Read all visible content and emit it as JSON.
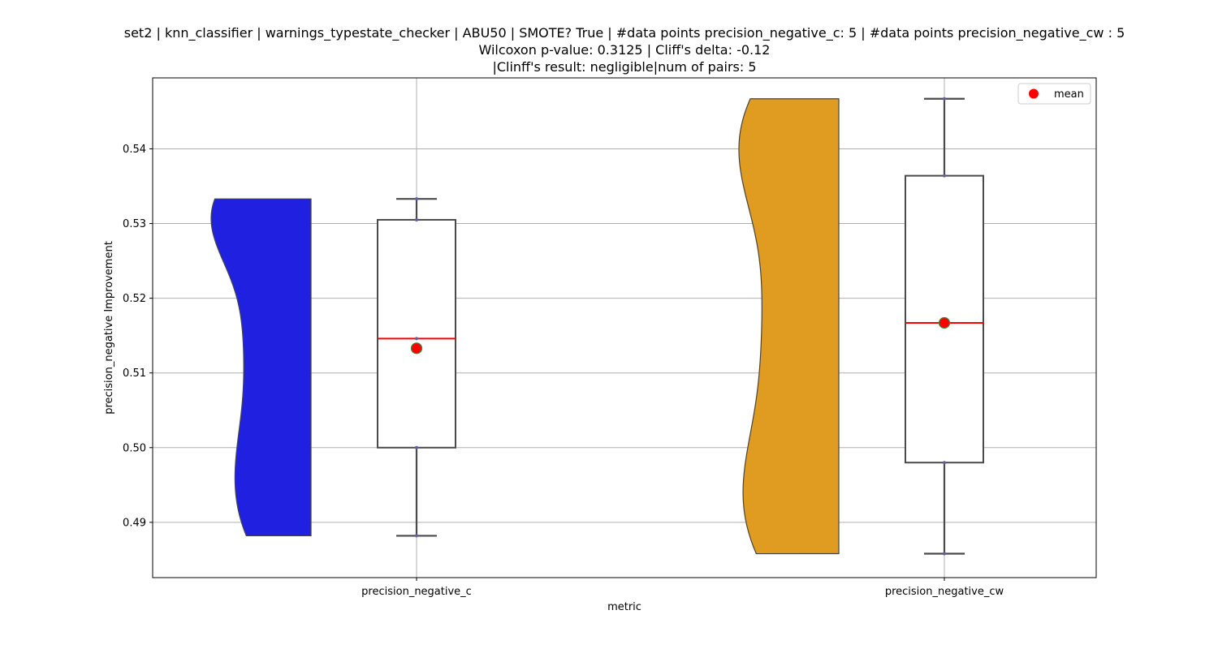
{
  "chart_data": {
    "type": "violin+box",
    "title_lines": [
      "set2 | knn_classifier | warnings_typestate_checker | ABU50 | SMOTE? True | #data points precision_negative_c: 5 | #data points precision_negative_cw : 5",
      "Wilcoxon p-value: 0.3125 | Cliff's delta: -0.12",
      "|Clinff's result: negligible|num of pairs: 5"
    ],
    "xlabel": "metric",
    "ylabel": "precision_negative Improvement",
    "ylim": [
      0.4826,
      0.5495
    ],
    "yticks": [
      0.49,
      0.5,
      0.51,
      0.52,
      0.53,
      0.54
    ],
    "ytick_labels": [
      "0.49",
      "0.50",
      "0.51",
      "0.52",
      "0.53",
      "0.54"
    ],
    "grid": true,
    "legend": {
      "placement": "top-right",
      "entries": [
        {
          "label": "mean",
          "color": "#ff0000"
        }
      ]
    },
    "categories": [
      "precision_negative_c",
      "precision_negative_cw"
    ],
    "series": [
      {
        "category": "precision_negative_c",
        "violin_color": "#2020e0",
        "violin_side": "left",
        "points": [
          0.4882,
          0.5,
          0.5146,
          0.5305,
          0.5333
        ],
        "box": {
          "min": 0.4882,
          "q1": 0.5,
          "median": 0.5146,
          "q3": 0.5305,
          "max": 0.5333
        },
        "mean": 0.5133
      },
      {
        "category": "precision_negative_cw",
        "violin_color": "#e09c20",
        "violin_side": "left",
        "points": [
          0.4858,
          0.498,
          0.5167,
          0.5364,
          0.5467
        ],
        "box": {
          "min": 0.4858,
          "q1": 0.498,
          "median": 0.5167,
          "q3": 0.5364,
          "max": 0.5467
        },
        "mean": 0.5167
      }
    ]
  }
}
